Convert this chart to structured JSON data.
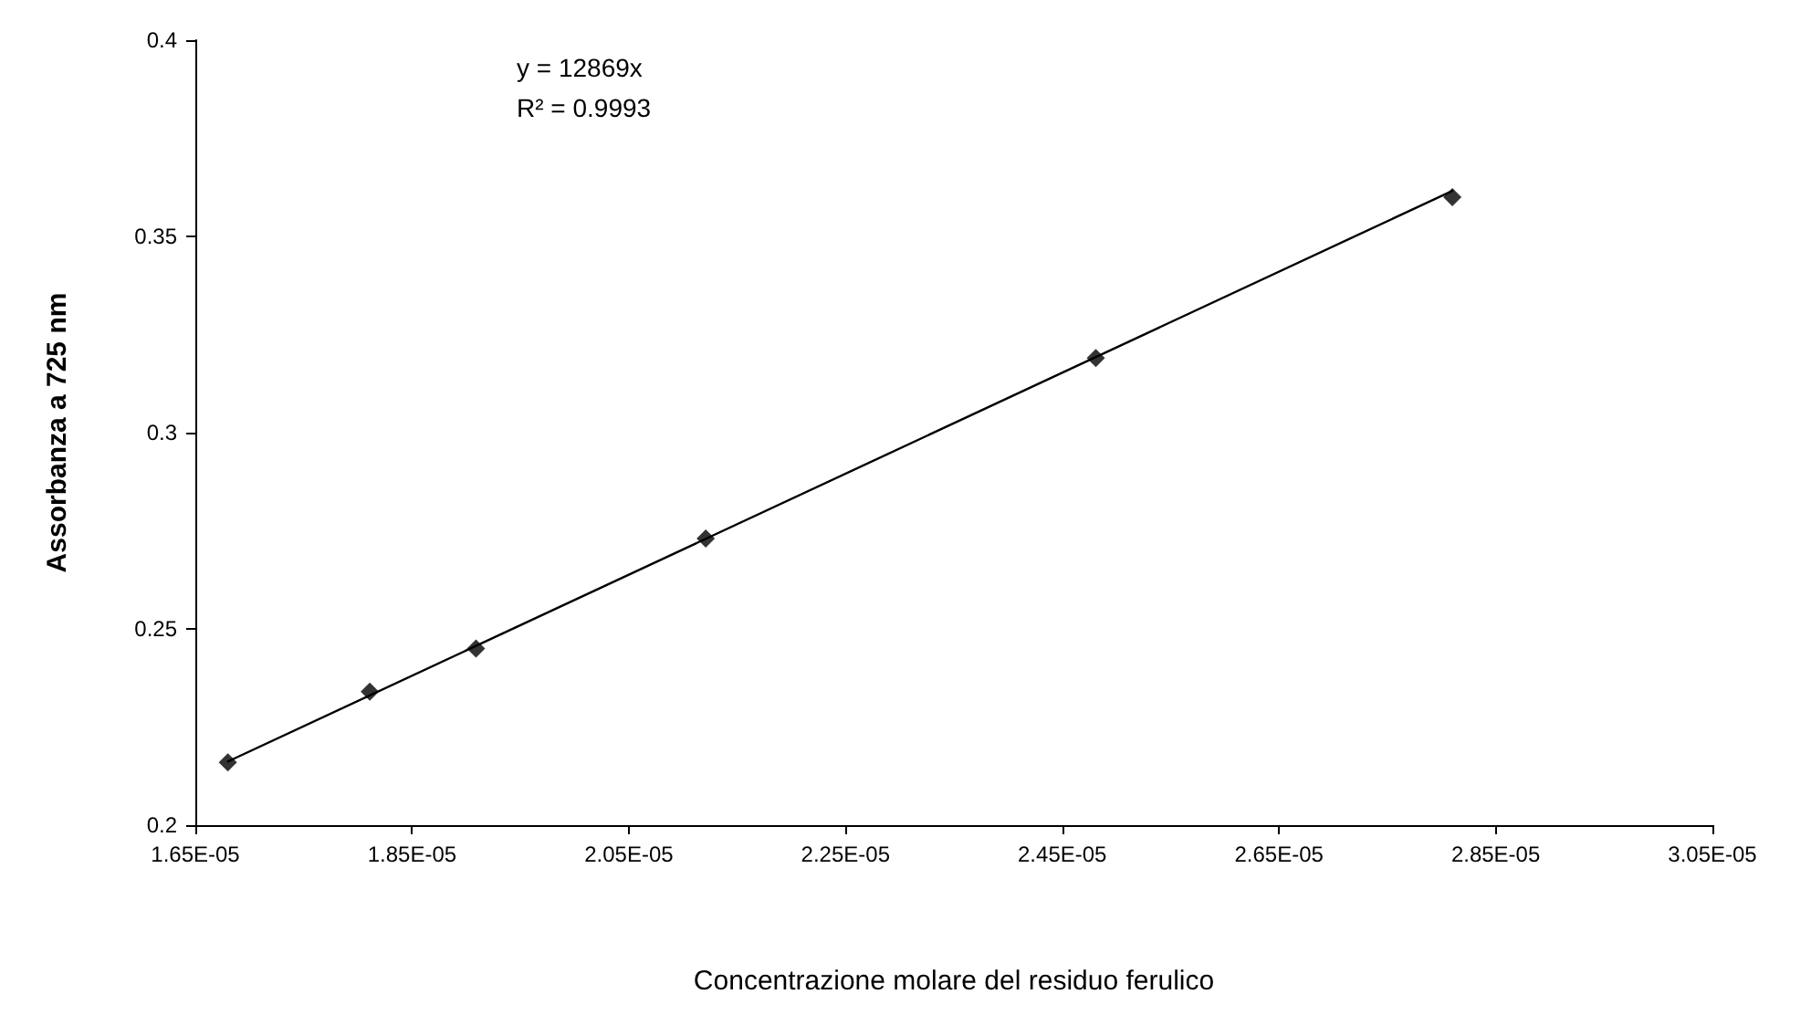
{
  "chart_data": {
    "type": "scatter",
    "xlabel": "Concentrazione molare del residuo ferulico",
    "ylabel": "Assorbanza a 725 nm",
    "annotations": [
      "y = 12869x",
      "R² = 0.9993"
    ],
    "marker": "diamond",
    "grid": false,
    "xlim": [
      1.65e-05,
      3.05e-05
    ],
    "xticks": [
      {
        "value": 1.65e-05,
        "label": "1.65E-05"
      },
      {
        "value": 1.85e-05,
        "label": "1.85E-05"
      },
      {
        "value": 2.05e-05,
        "label": "2.05E-05"
      },
      {
        "value": 2.25e-05,
        "label": "2.25E-05"
      },
      {
        "value": 2.45e-05,
        "label": "2.45E-05"
      },
      {
        "value": 2.65e-05,
        "label": "2.65E-05"
      },
      {
        "value": 2.85e-05,
        "label": "2.85E-05"
      },
      {
        "value": 3.05e-05,
        "label": "3.05E-05"
      }
    ],
    "ylim": [
      0.2,
      0.4
    ],
    "yticks": [
      0.2,
      0.25,
      0.3,
      0.35,
      0.4
    ],
    "series": [
      {
        "type": "scatter",
        "color": "#000000",
        "x": [
          1.68e-05,
          1.811e-05,
          1.909e-05,
          2.121e-05,
          2.481e-05,
          2.81e-05
        ],
        "values": [
          0.216,
          0.234,
          0.245,
          0.273,
          0.319,
          0.36
        ]
      },
      {
        "type": "line",
        "color": "#000000",
        "marker": "none",
        "x": [
          1.68e-05,
          2.81e-05
        ],
        "values": [
          0.2162,
          0.3616
        ]
      }
    ]
  }
}
